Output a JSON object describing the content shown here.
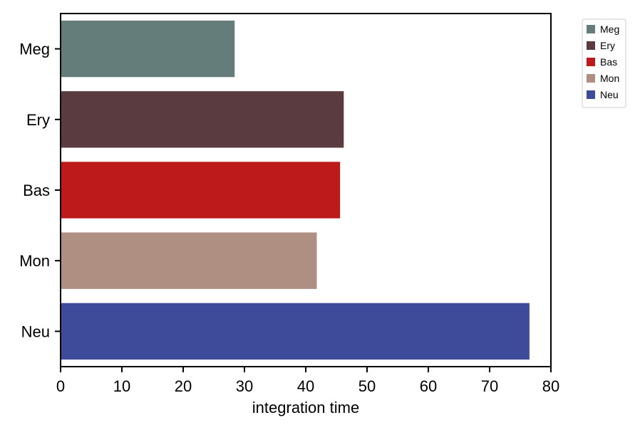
{
  "chart_data": {
    "type": "bar",
    "orientation": "horizontal",
    "title": "",
    "xlabel": "integration time",
    "ylabel": "",
    "xlim": [
      0,
      80
    ],
    "x_ticks": [
      0,
      10,
      20,
      30,
      40,
      50,
      60,
      70,
      80
    ],
    "categories": [
      "Meg",
      "Ery",
      "Bas",
      "Mon",
      "Neu"
    ],
    "values": [
      28.4,
      46.2,
      45.6,
      41.8,
      76.5
    ],
    "colors": [
      "#647d7b",
      "#5a3c40",
      "#bd1a1c",
      "#b08f83",
      "#3e4b9b"
    ],
    "grid": false,
    "legend": {
      "placement": "outside-top-right",
      "entries": [
        "Meg",
        "Ery",
        "Bas",
        "Mon",
        "Neu"
      ]
    }
  }
}
